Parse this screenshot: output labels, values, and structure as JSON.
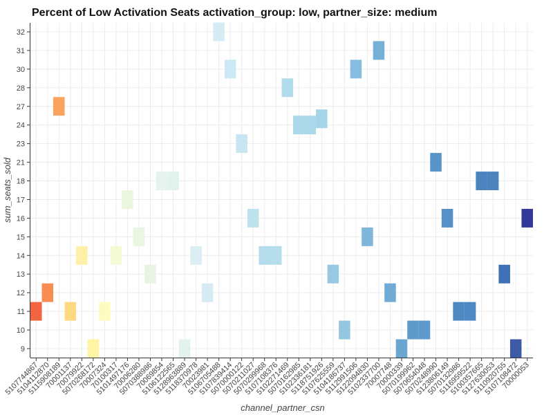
{
  "chart_data": {
    "type": "heatmap",
    "title": "Percent of Low Activation Seats  activation_group: low, partner_size: medium",
    "xlabel": "channel_partner_csn",
    "ylabel": "sum_seats_sold",
    "categories": [
      "5107744867",
      "5104112870",
      "5115908189",
      "70001137",
      "70079922",
      "5070268172",
      "70007324",
      "70100317",
      "5101497176",
      "70006280",
      "5070388986",
      "70069854",
      "5106122565",
      "5128963889",
      "5118370978",
      "70023981",
      "5106705488",
      "5107839414",
      "5070000122",
      "5070211027",
      "5070299968",
      "5107108376",
      "5102271469",
      "5070162985",
      "5102336181",
      "5118751926",
      "5107625559",
      "5104186737",
      "5112991506",
      "5122094830",
      "5102337700",
      "70007748",
      "70000339",
      "5070199962",
      "5070654048",
      "5070248990",
      "5123806149",
      "5070132986",
      "5116959522",
      "5100357665",
      "5127630053",
      "5110920755",
      "5107108472",
      "70000053"
    ],
    "y_ticks": [
      9,
      10,
      11,
      12,
      13,
      14,
      15,
      16,
      17,
      18,
      21,
      23,
      24,
      27,
      28,
      30,
      31,
      32
    ],
    "color_scale": "RdYlBu (low = red, high = dark blue)",
    "grid": true,
    "cells": [
      {
        "x": "5107744867",
        "y": 11,
        "color": "#f16640"
      },
      {
        "x": "5104112870",
        "y": 12,
        "color": "#f88d52"
      },
      {
        "x": "5115908189",
        "y": 27,
        "color": "#fba35c"
      },
      {
        "x": "70001137",
        "y": 11,
        "color": "#fed883"
      },
      {
        "x": "70079922",
        "y": 14,
        "color": "#fff0a8"
      },
      {
        "x": "5070268172",
        "y": 9,
        "color": "#fff3a4"
      },
      {
        "x": "70007324",
        "y": 11,
        "color": "#fffac0"
      },
      {
        "x": "70100317",
        "y": 14,
        "color": "#f4fad5"
      },
      {
        "x": "5101497176",
        "y": 17,
        "color": "#eaf6de"
      },
      {
        "x": "70006280",
        "y": 15,
        "color": "#e9f6e2"
      },
      {
        "x": "5070388986",
        "y": 13,
        "color": "#e7f3e3"
      },
      {
        "x": "70069854",
        "y": 18,
        "color": "#e4f4ec"
      },
      {
        "x": "5106122565",
        "y": 18,
        "color": "#e2f3ee"
      },
      {
        "x": "5128963889",
        "y": 9,
        "color": "#e3f2ef"
      },
      {
        "x": "5118370978",
        "y": 14,
        "color": "#daeef4"
      },
      {
        "x": "70023981",
        "y": 12,
        "color": "#d6ebf4"
      },
      {
        "x": "5106705488",
        "y": 32,
        "color": "#d5ecf4"
      },
      {
        "x": "5107839414",
        "y": 30,
        "color": "#cce8f2"
      },
      {
        "x": "5070000122",
        "y": 23,
        "color": "#c8e5f1"
      },
      {
        "x": "5070211027",
        "y": 16,
        "color": "#bfe2ef"
      },
      {
        "x": "5070299968",
        "y": 14,
        "color": "#b4dcec"
      },
      {
        "x": "5107108376",
        "y": 14,
        "color": "#b5ddec"
      },
      {
        "x": "5102271469",
        "y": 28,
        "color": "#b1dbeb"
      },
      {
        "x": "5070162985",
        "y": 24,
        "color": "#abd8ea"
      },
      {
        "x": "5102336181",
        "y": 24,
        "color": "#abd8ea"
      },
      {
        "x": "5118751926",
        "y": 25,
        "color": "#a6d4e8"
      },
      {
        "x": "5107625559",
        "y": 13,
        "color": "#98c9e3"
      },
      {
        "x": "5104186737",
        "y": 10,
        "color": "#94c6e1"
      },
      {
        "x": "5112991506",
        "y": 30,
        "color": "#87bde0"
      },
      {
        "x": "5122094830",
        "y": 15,
        "color": "#7fb6db"
      },
      {
        "x": "5102337700",
        "y": 31,
        "color": "#76afd7"
      },
      {
        "x": "70007748",
        "y": 12,
        "color": "#71abd5"
      },
      {
        "x": "70000339",
        "y": 9,
        "color": "#6ba5d2"
      },
      {
        "x": "5070199962",
        "y": 10,
        "color": "#5f9acc"
      },
      {
        "x": "5070654048",
        "y": 10,
        "color": "#5f9acc"
      },
      {
        "x": "5070248990",
        "y": 21,
        "color": "#5994c9"
      },
      {
        "x": "5123806149",
        "y": 16,
        "color": "#5590c7"
      },
      {
        "x": "5070132986",
        "y": 11,
        "color": "#4f89c3"
      },
      {
        "x": "5116959522",
        "y": 11,
        "color": "#4f89c3"
      },
      {
        "x": "5100357665",
        "y": 18,
        "color": "#4c84c0"
      },
      {
        "x": "5127630053",
        "y": 18,
        "color": "#4c84c0"
      },
      {
        "x": "5110920755",
        "y": 13,
        "color": "#3f6fb5"
      },
      {
        "x": "5107108472",
        "y": 9,
        "color": "#3d5aa7"
      },
      {
        "x": "70000053",
        "y": 16,
        "color": "#33399a"
      }
    ]
  }
}
